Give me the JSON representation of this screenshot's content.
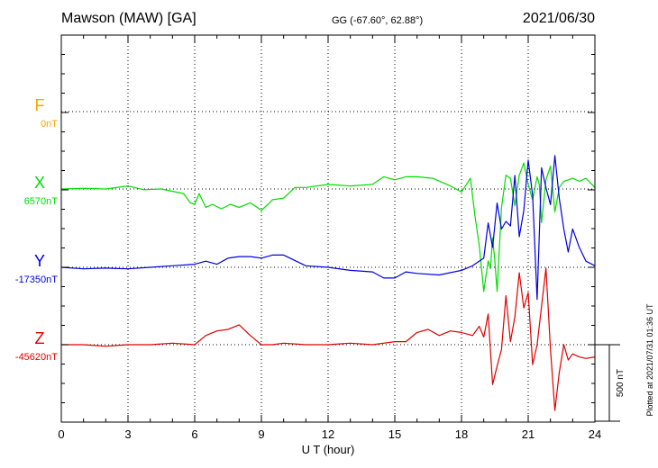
{
  "header": {
    "station": "Mawson (MAW)  [GA]",
    "coords": "GG (-67.60°,  62.88°)",
    "date": "2021/06/30"
  },
  "footer": {
    "plotted": "Plotted at 2021/07/31 01:36 UT",
    "scale_label": "500 nT"
  },
  "chart_data": {
    "type": "line",
    "title": "Mawson (MAW)  [GA]",
    "xlabel": "U T (hour)",
    "ylabel": "",
    "xlim": [
      0,
      24
    ],
    "xticks": [
      0,
      3,
      6,
      9,
      12,
      15,
      18,
      21,
      24
    ],
    "xtick_labels": [
      "0",
      "3",
      "6",
      "9",
      "12",
      "15",
      "18",
      "21",
      "24"
    ],
    "scale_bar_nT": 500,
    "grid": true,
    "series": [
      {
        "name": "F",
        "baseline": "0nT",
        "color": "#ffa500",
        "x": [],
        "values": []
      },
      {
        "name": "X",
        "baseline": "6570nT",
        "color": "#00dd00",
        "x": [
          0,
          1,
          2,
          3,
          3.7,
          4.5,
          5.5,
          5.8,
          6,
          6.2,
          6.5,
          6.8,
          7.2,
          7.6,
          8,
          8.5,
          9,
          9.3,
          9.5,
          10,
          10.5,
          11,
          12,
          13,
          14,
          14.5,
          15,
          15.5,
          16,
          16.7,
          17.5,
          18,
          18.4,
          18.6,
          18.8,
          19,
          19.1,
          19.2,
          19.3,
          19.4,
          19.5,
          19.6,
          19.8,
          20,
          20.2,
          20.4,
          20.6,
          20.8,
          21,
          21.2,
          21.4,
          21.5,
          21.6,
          21.8,
          22,
          22.2,
          22.4,
          22.6,
          22.8,
          23,
          23.3,
          23.6,
          24
        ],
        "values": [
          6570,
          6575,
          6570,
          6590,
          6565,
          6570,
          6540,
          6480,
          6470,
          6540,
          6450,
          6470,
          6440,
          6470,
          6450,
          6480,
          6430,
          6470,
          6500,
          6510,
          6580,
          6580,
          6600,
          6590,
          6600,
          6650,
          6630,
          6650,
          6650,
          6640,
          6590,
          6550,
          6640,
          6400,
          6200,
          5900,
          6000,
          6100,
          6050,
          6250,
          6100,
          5900,
          6450,
          6660,
          6640,
          6460,
          6660,
          6740,
          6600,
          6500,
          6650,
          6600,
          6350,
          6630,
          6720,
          6420,
          6580,
          6620,
          6630,
          6640,
          6620,
          6640,
          6580
        ]
      },
      {
        "name": "Y",
        "baseline": "-17350nT",
        "color": "#0000dd",
        "x": [
          0,
          1,
          2,
          3,
          4,
          5,
          6,
          6.5,
          7,
          7.5,
          8,
          8.5,
          9,
          9.5,
          10,
          11,
          12,
          13,
          14,
          14.5,
          15,
          15.5,
          16,
          17,
          18,
          18.5,
          19,
          19.2,
          19.4,
          19.6,
          19.8,
          20,
          20.2,
          20.4,
          20.6,
          20.8,
          21,
          21.2,
          21.4,
          21.6,
          21.8,
          22,
          22.2,
          22.4,
          22.6,
          22.8,
          23,
          23.3,
          23.6,
          24
        ],
        "values": [
          -17350,
          -17360,
          -17355,
          -17360,
          -17350,
          -17340,
          -17330,
          -17310,
          -17330,
          -17290,
          -17280,
          -17280,
          -17290,
          -17270,
          -17270,
          -17340,
          -17350,
          -17370,
          -17380,
          -17420,
          -17420,
          -17380,
          -17390,
          -17400,
          -17370,
          -17340,
          -17290,
          -17060,
          -17220,
          -16930,
          -17100,
          -17050,
          -17080,
          -16750,
          -17150,
          -16980,
          -16650,
          -16880,
          -17560,
          -16700,
          -16830,
          -16940,
          -16620,
          -16900,
          -17100,
          -17250,
          -17100,
          -17220,
          -17310,
          -17340
        ]
      },
      {
        "name": "Z",
        "baseline": "-45620nT",
        "color": "#dd0000",
        "x": [
          0,
          1,
          2,
          3,
          4,
          5,
          6,
          6.5,
          7,
          7.5,
          8,
          8.5,
          9,
          9.5,
          10,
          11,
          12,
          13,
          14,
          15,
          15.5,
          16,
          16.5,
          17,
          17.5,
          18,
          18.5,
          18.8,
          19,
          19.2,
          19.4,
          19.6,
          19.8,
          20,
          20.2,
          20.4,
          20.6,
          20.8,
          21,
          21.2,
          21.4,
          21.6,
          21.8,
          22,
          22.2,
          22.4,
          22.6,
          22.8,
          23,
          23.3,
          23.6,
          24
        ],
        "values": [
          -45620,
          -45620,
          -45630,
          -45620,
          -45620,
          -45610,
          -45620,
          -45560,
          -45530,
          -45520,
          -45490,
          -45560,
          -45620,
          -45620,
          -45610,
          -45620,
          -45620,
          -45610,
          -45620,
          -45600,
          -45600,
          -45540,
          -45520,
          -45560,
          -45530,
          -45540,
          -45560,
          -45500,
          -45570,
          -45420,
          -45880,
          -45760,
          -45650,
          -45300,
          -45600,
          -45440,
          -45150,
          -45380,
          -45280,
          -45750,
          -45620,
          -45370,
          -45120,
          -45650,
          -46050,
          -45800,
          -45620,
          -45720,
          -45680,
          -45700,
          -45710,
          -45700
        ]
      }
    ]
  }
}
